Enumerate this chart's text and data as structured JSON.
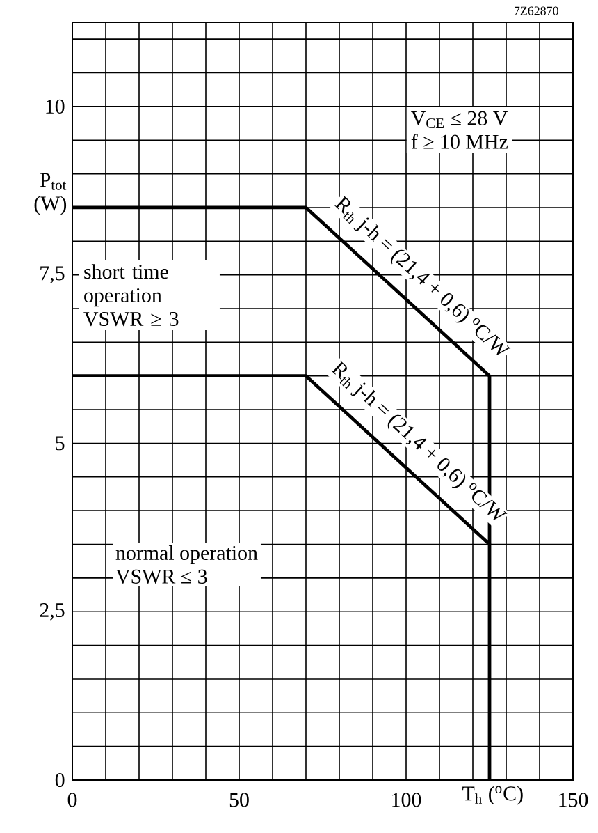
{
  "chart_data": {
    "type": "line",
    "xlabel": "T$_{h}$ ($^{o}$C)",
    "ylabel": "P$_{tot}$ (W)",
    "xlim": [
      0,
      150
    ],
    "ylim": [
      0,
      11.25
    ],
    "xticks": [
      0,
      {
        "value": 10,
        "label": null
      },
      {
        "value": 20,
        "label": null
      },
      {
        "value": 30,
        "label": null
      },
      {
        "value": 40,
        "label": null
      },
      50,
      {
        "value": 60,
        "label": null
      },
      {
        "value": 70,
        "label": null
      },
      {
        "value": 80,
        "label": null
      },
      {
        "value": 90,
        "label": null
      },
      100,
      {
        "value": 110,
        "label": null
      },
      {
        "value": 120,
        "label": null
      },
      {
        "value": 130,
        "label": null
      },
      {
        "value": 140,
        "label": null
      },
      150
    ],
    "yticks": [
      0,
      {
        "value": 0.5,
        "label": null
      },
      {
        "value": 1,
        "label": null
      },
      {
        "value": 1.5,
        "label": null
      },
      {
        "value": 2,
        "label": null
      },
      {
        "value": 2.5,
        "label": "2,5"
      },
      {
        "value": 3,
        "label": null
      },
      {
        "value": 3.5,
        "label": null
      },
      {
        "value": 4,
        "label": null
      },
      {
        "value": 4.5,
        "label": null
      },
      5,
      {
        "value": 5.5,
        "label": null
      },
      {
        "value": 6,
        "label": null
      },
      {
        "value": 6.5,
        "label": null
      },
      {
        "value": 7,
        "label": null
      },
      {
        "value": 7.5,
        "label": "7,5"
      },
      {
        "value": 8,
        "label": null
      },
      {
        "value": 8.5,
        "label": null
      },
      {
        "value": 9,
        "label": null
      },
      {
        "value": 9.5,
        "label": null
      },
      10,
      {
        "value": 10.5,
        "label": null
      },
      {
        "value": 11,
        "label": null
      }
    ],
    "grid": true,
    "marker": "none",
    "line_style": "solid",
    "series": [
      {
        "color": "#000000",
        "x": [
          0,
          70,
          125,
          125
        ],
        "values": [
          8.5,
          8.5,
          6,
          3.5
        ]
      },
      {
        "color": "#000000",
        "x": [
          0,
          70,
          125,
          125
        ],
        "values": [
          6,
          6,
          3.5,
          0
        ]
      }
    ],
    "annotations": [
      "7Z62870",
      "V$_{CE}$ ≤ 28 V",
      "f ≥ 10 MHz",
      "short time operation",
      "VSWR ≥ 3",
      "normal operation",
      "VSWR ≤ 3",
      "R$_{th}$ j-h = (21,4 + 0,6) $^{o}$C/W",
      "R$_{th}$ j-h = (21,4 + 0,6) $^{o}$C/W"
    ]
  }
}
